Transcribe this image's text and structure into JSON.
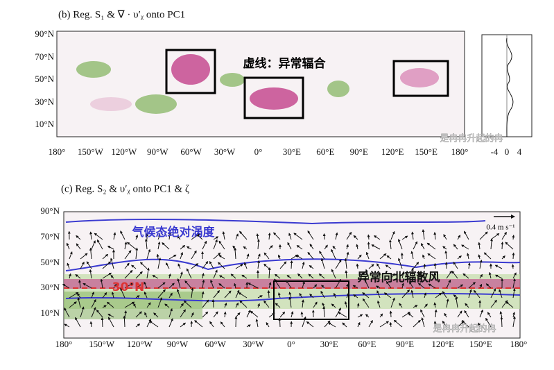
{
  "panel_b": {
    "title": "(b) Reg. S₁ & ∇ · υ′ᵪ onto PC1",
    "lat_labels": [
      "90°N",
      "70°N",
      "50°N",
      "30°N",
      "10°N"
    ],
    "lon_labels": [
      "180°",
      "150°W",
      "120°W",
      "90°W",
      "60°W",
      "30°W",
      "0°",
      "30°E",
      "60°E",
      "90°E",
      "120°E",
      "150°E",
      "180°"
    ],
    "annotation": "虚线：异常辐合",
    "profile_ticks": [
      "-4",
      "0",
      "4"
    ],
    "watermark": "是冉冉升起的冉"
  },
  "panel_c": {
    "title": "(c) Reg. S₂ & υ′ᵪ onto PC1 & ζ",
    "lat_labels": [
      "90°N",
      "70°N",
      "50°N",
      "30°N",
      "10°N"
    ],
    "lon_labels": [
      "180°",
      "150°W",
      "120°W",
      "90°W",
      "60°W",
      "30°W",
      "0°",
      "30°E",
      "60°E",
      "90°E",
      "120°E",
      "150°E",
      "180°"
    ],
    "annotations": [
      "气候态绝对涡度",
      "30°N",
      "异常向北辐散风"
    ],
    "vector_key": "0.4 m s⁻¹",
    "watermark": "是冉冉升起的冉"
  }
}
